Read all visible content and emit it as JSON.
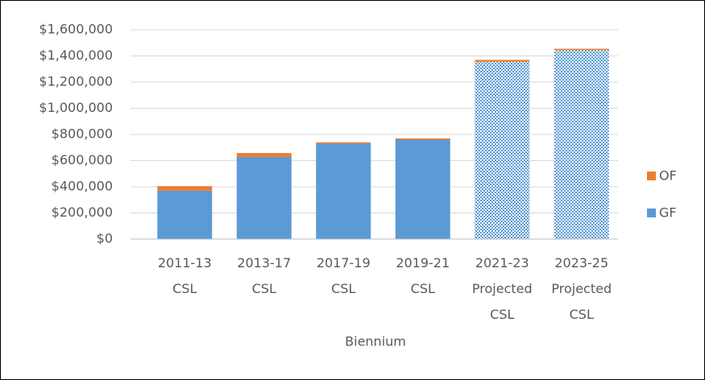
{
  "chart_data": {
    "type": "stacked_bar",
    "x_label": "Biennium",
    "categories": [
      "2011-13 CSL",
      "2013-17 CSL",
      "2017-19 CSL",
      "2019-21 CSL",
      "2021-23 Projected CSL",
      "2023-25 Projected CSL"
    ],
    "pattern_fill": [
      false,
      false,
      false,
      false,
      true,
      true
    ],
    "series": [
      {
        "name": "GF",
        "color": "#5b9bd5",
        "values": [
          370000,
          628000,
          730000,
          760000,
          1355000,
          1445000
        ]
      },
      {
        "name": "OF",
        "color": "#ed7d31",
        "values": [
          35000,
          30000,
          10000,
          10000,
          15000,
          10000
        ]
      }
    ],
    "ylim": [
      0,
      1600000
    ],
    "yticks": [
      {
        "value": 0,
        "label": "$0"
      },
      {
        "value": 200000,
        "label": "$200,000"
      },
      {
        "value": 400000,
        "label": "$400,000"
      },
      {
        "value": 600000,
        "label": "$600,000"
      },
      {
        "value": 800000,
        "label": "$800,000"
      },
      {
        "value": 1000000,
        "label": "$1,000,000"
      },
      {
        "value": 1200000,
        "label": "$1,200,000"
      },
      {
        "value": 1400000,
        "label": "$1,400,000"
      },
      {
        "value": 1600000,
        "label": "$1,600,000"
      }
    ],
    "grid": true,
    "legend": "right"
  }
}
